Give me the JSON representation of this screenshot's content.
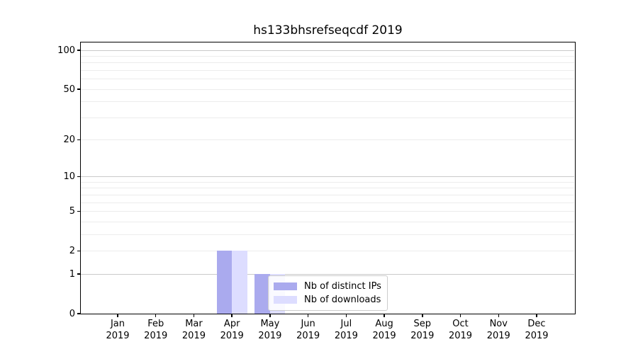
{
  "chart_data": {
    "type": "bar",
    "title": "hs133bhsrefseqcdf 2019",
    "categories": [
      "Jan",
      "Feb",
      "Mar",
      "Apr",
      "May",
      "Jun",
      "Jul",
      "Aug",
      "Sep",
      "Oct",
      "Nov",
      "Dec"
    ],
    "category_year_line": "2019",
    "series": [
      {
        "name": "Nb of distinct IPs",
        "color": "#aaaaee",
        "values": [
          0,
          0,
          0,
          2,
          1,
          0,
          0,
          0,
          0,
          0,
          0,
          0
        ]
      },
      {
        "name": "Nb of downloads",
        "color": "#ddddff",
        "values": [
          0,
          0,
          0,
          2,
          1,
          0,
          0,
          0,
          0,
          0,
          0,
          0
        ]
      }
    ],
    "yscale": "log1p",
    "ylim": [
      0,
      115
    ],
    "y_tick_values": [
      0,
      1,
      2,
      5,
      10,
      20,
      50,
      100
    ],
    "grid_major_values": [
      1,
      10,
      100
    ],
    "grid_minor_values": [
      2,
      3,
      4,
      5,
      6,
      7,
      8,
      9,
      20,
      30,
      40,
      50,
      60,
      70,
      80,
      90
    ],
    "grid": true,
    "legend_position": "lower-center",
    "colors": {
      "axis": "#000000",
      "text": "#000000",
      "grid_major": "#c9c9c9",
      "grid_minor": "#ececec",
      "legend_border": "#cccccc",
      "background": "#ffffff"
    }
  }
}
